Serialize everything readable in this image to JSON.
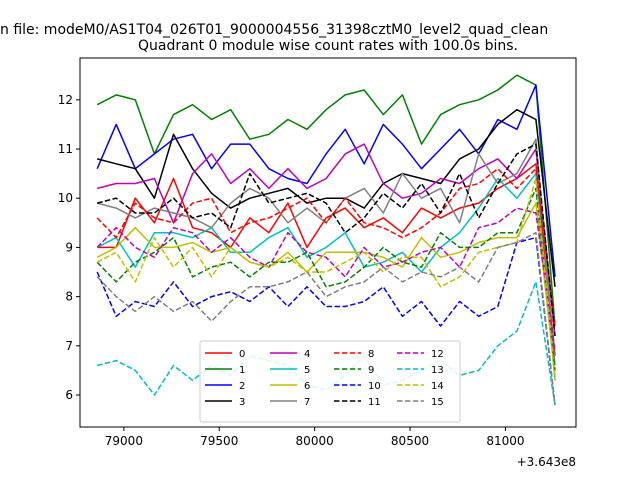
{
  "chart_data": {
    "type": "line",
    "title_top": "n file: modeM0/AS1T04_026T01_9000004556_31398cztM0_level2_quad_clean",
    "title": "Quadrant 0 module wise count rates with 100.0s bins.",
    "xlabel": "",
    "ylabel": "",
    "x_offset_label": "+3.643e8",
    "xlim": [
      78770,
      81370
    ],
    "ylim": [
      5.35,
      12.85
    ],
    "xticks": [
      79000,
      79500,
      80000,
      80500,
      81000
    ],
    "xtick_labels": [
      "79000",
      "79500",
      "80000",
      "80500",
      "81000"
    ],
    "yticks": [
      6,
      7,
      8,
      9,
      10,
      11,
      12
    ],
    "ytick_labels": [
      "6",
      "7",
      "8",
      "9",
      "10",
      "11",
      "12"
    ],
    "grid": false,
    "legend_position": "lower-center",
    "x": [
      78860,
      78960,
      79060,
      79160,
      79260,
      79360,
      79460,
      79560,
      79660,
      79760,
      79860,
      79960,
      80060,
      80160,
      80260,
      80360,
      80460,
      80560,
      80660,
      80760,
      80860,
      80960,
      81060,
      81160,
      81260
    ],
    "series": [
      {
        "name": "0",
        "color": "#ff0000",
        "dash": "solid",
        "values": [
          9.0,
          9.0,
          10.0,
          9.5,
          10.4,
          9.4,
          9.3,
          9.0,
          9.6,
          9.3,
          9.9,
          9.0,
          9.6,
          9.8,
          9.4,
          9.6,
          9.3,
          9.8,
          9.6,
          9.8,
          9.9,
          10.2,
          10.4,
          10.7,
          6.8
        ]
      },
      {
        "name": "1",
        "color": "#008000",
        "dash": "solid",
        "values": [
          11.9,
          12.1,
          12.0,
          10.9,
          11.7,
          11.9,
          11.6,
          11.8,
          11.2,
          11.3,
          11.6,
          11.4,
          11.8,
          12.1,
          12.2,
          11.7,
          12.1,
          11.1,
          11.7,
          11.9,
          12.0,
          12.2,
          12.5,
          12.3,
          7.4
        ]
      },
      {
        "name": "2",
        "color": "#0000ff",
        "dash": "solid",
        "values": [
          10.6,
          11.5,
          10.6,
          10.9,
          11.2,
          11.3,
          10.6,
          11.1,
          11.1,
          10.6,
          10.4,
          10.3,
          10.9,
          11.4,
          10.7,
          11.5,
          11.1,
          10.6,
          11.0,
          11.4,
          10.9,
          11.6,
          11.4,
          12.3,
          8.4
        ]
      },
      {
        "name": "3",
        "color": "#000000",
        "dash": "solid",
        "values": [
          10.8,
          10.7,
          10.6,
          10.0,
          11.3,
          10.6,
          10.1,
          9.8,
          10.0,
          10.1,
          10.2,
          9.9,
          10.0,
          10.0,
          9.8,
          10.3,
          10.5,
          10.4,
          10.3,
          10.8,
          11.0,
          11.5,
          11.8,
          11.6,
          8.2
        ]
      },
      {
        "name": "4",
        "color": "#bf00bf",
        "dash": "solid",
        "values": [
          10.2,
          10.3,
          10.3,
          10.4,
          9.5,
          10.5,
          10.9,
          10.3,
          10.6,
          10.2,
          10.6,
          10.2,
          10.4,
          10.9,
          11.1,
          10.3,
          10.0,
          10.1,
          10.4,
          10.3,
          10.6,
          10.8,
          10.4,
          11.0,
          7.2
        ]
      },
      {
        "name": "5",
        "color": "#00bfbf",
        "dash": "solid",
        "values": [
          9.0,
          9.2,
          8.6,
          9.3,
          9.3,
          9.2,
          9.4,
          8.9,
          8.9,
          9.2,
          9.4,
          8.8,
          9.0,
          9.3,
          8.6,
          8.7,
          8.9,
          8.5,
          9.0,
          9.3,
          9.8,
          10.4,
          10.0,
          10.5,
          6.3
        ]
      },
      {
        "name": "6",
        "color": "#bfbf00",
        "dash": "solid",
        "values": [
          8.8,
          9.0,
          9.4,
          9.0,
          9.0,
          9.1,
          8.9,
          9.0,
          8.7,
          8.6,
          8.9,
          8.5,
          8.9,
          8.9,
          8.9,
          8.8,
          8.6,
          9.2,
          8.8,
          8.9,
          9.1,
          9.2,
          9.2,
          9.9,
          6.4
        ]
      },
      {
        "name": "7",
        "color": "#808080",
        "dash": "solid",
        "values": [
          9.9,
          9.8,
          9.6,
          9.8,
          9.7,
          9.6,
          9.4,
          9.9,
          10.2,
          10.0,
          9.5,
          9.8,
          9.5,
          10.0,
          10.2,
          9.7,
          10.5,
          10.0,
          10.2,
          9.5,
          10.9,
          10.3,
          10.5,
          11.2,
          6.6
        ]
      },
      {
        "name": "8",
        "color": "#ff0000",
        "dash": "dashed",
        "values": [
          9.6,
          9.2,
          9.9,
          9.6,
          9.5,
          9.9,
          10.0,
          9.3,
          9.5,
          9.6,
          9.8,
          10.0,
          9.5,
          10.0,
          9.5,
          9.4,
          9.2,
          9.4,
          9.7,
          10.2,
          10.3,
          10.6,
          10.2,
          10.6,
          7.4
        ]
      },
      {
        "name": "9",
        "color": "#008000",
        "dash": "dashed",
        "values": [
          8.7,
          8.3,
          8.7,
          8.9,
          9.2,
          8.4,
          8.6,
          8.7,
          8.4,
          8.7,
          8.7,
          8.9,
          8.2,
          8.3,
          8.6,
          9.0,
          8.7,
          8.6,
          9.3,
          9.0,
          9.0,
          9.3,
          9.3,
          10.2,
          6.5
        ]
      },
      {
        "name": "10",
        "color": "#0000ff",
        "dash": "dashed",
        "values": [
          8.5,
          7.6,
          7.9,
          7.8,
          8.3,
          7.8,
          8.0,
          8.1,
          7.9,
          8.2,
          7.8,
          8.2,
          7.8,
          7.8,
          7.9,
          8.2,
          7.6,
          7.9,
          7.4,
          7.9,
          7.6,
          7.8,
          9.1,
          9.2,
          5.8
        ]
      },
      {
        "name": "11",
        "color": "#000000",
        "dash": "dashed",
        "values": [
          9.9,
          10.0,
          9.7,
          9.7,
          10.0,
          9.6,
          9.7,
          9.4,
          10.5,
          9.9,
          10.0,
          10.1,
          9.9,
          9.3,
          9.6,
          10.1,
          9.8,
          10.3,
          9.7,
          10.5,
          9.6,
          10.3,
          10.9,
          11.1,
          7.2
        ]
      },
      {
        "name": "12",
        "color": "#bf00bf",
        "dash": "dashed",
        "values": [
          9.0,
          9.4,
          9.0,
          8.8,
          9.4,
          9.3,
          8.9,
          9.2,
          8.8,
          8.6,
          9.3,
          8.9,
          8.8,
          8.4,
          9.0,
          8.6,
          8.7,
          8.9,
          9.0,
          8.6,
          9.4,
          9.5,
          9.8,
          9.7,
          6.9
        ]
      },
      {
        "name": "13",
        "color": "#00bfbf",
        "dash": "dashed",
        "values": [
          6.6,
          6.7,
          6.5,
          6.0,
          6.6,
          6.3,
          6.6,
          6.4,
          6.8,
          6.7,
          6.6,
          6.2,
          6.1,
          6.4,
          6.8,
          6.2,
          6.3,
          6.5,
          6.7,
          6.4,
          6.5,
          7.0,
          7.3,
          8.3,
          5.8
        ]
      },
      {
        "name": "14",
        "color": "#bfbf00",
        "dash": "dashed",
        "values": [
          8.7,
          8.9,
          8.3,
          9.2,
          8.6,
          9.0,
          8.4,
          9.0,
          8.7,
          8.6,
          8.8,
          8.5,
          8.5,
          8.7,
          8.9,
          8.5,
          8.8,
          8.8,
          8.2,
          8.4,
          8.9,
          9.0,
          9.1,
          10.4,
          6.3
        ]
      },
      {
        "name": "15",
        "color": "#808080",
        "dash": "dashed",
        "values": [
          8.4,
          8.0,
          7.7,
          8.0,
          7.7,
          7.9,
          7.5,
          7.9,
          8.2,
          8.2,
          8.3,
          8.5,
          8.0,
          8.2,
          8.3,
          8.6,
          8.3,
          8.5,
          8.4,
          8.6,
          8.3,
          9.0,
          9.1,
          9.3,
          5.8
        ]
      }
    ]
  }
}
